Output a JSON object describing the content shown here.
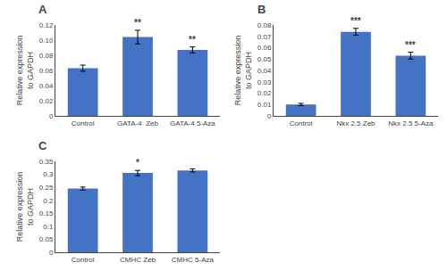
{
  "chart_data": [
    {
      "type": "bar",
      "title": "A",
      "categories": [
        "Control",
        "GATA-4  Zeb",
        "GATA-4 5-Aza"
      ],
      "values": [
        0.063,
        0.104,
        0.087
      ],
      "errors": [
        0.004,
        0.009,
        0.004
      ],
      "color": "#4472C4",
      "ylim": [
        0,
        0.12
      ],
      "yticks": [
        0,
        0.02,
        0.04,
        0.06,
        0.08,
        {
          "value": 0.1,
          "label": "0.10"
        },
        0.12
      ],
      "ylabel": "Relative expression\nto GAPDH",
      "annotations": [
        {
          "x": "GATA-4  Zeb",
          "text": "**"
        },
        {
          "x": "GATA-4 5-Aza",
          "text": "**"
        }
      ],
      "grid": false
    },
    {
      "type": "bar",
      "title": "B",
      "categories": [
        "Control",
        "Nkx 2.5 Zeb",
        "Nkx 2.5 5-Aza"
      ],
      "values": [
        0.01,
        0.074,
        0.053
      ],
      "errors": [
        0.001,
        0.003,
        0.003
      ],
      "color": "#4472C4",
      "ylim": [
        0,
        0.08
      ],
      "yticks": [
        0,
        0.01,
        0.02,
        0.03,
        0.04,
        0.05,
        0.06,
        0.07,
        0.08
      ],
      "ylabel": "Relative expression\nto GAPDH",
      "annotations": [
        {
          "x": "Nkx 2.5 Zeb",
          "text": "***"
        },
        {
          "x": "Nkx 2.5 5-Aza",
          "text": "***"
        }
      ],
      "grid": false
    },
    {
      "type": "bar",
      "title": "C",
      "categories": [
        "Control",
        "CMHC Zeb",
        "CMHC 5-Aza"
      ],
      "values": [
        0.245,
        0.305,
        0.315
      ],
      "errors": [
        0.006,
        0.01,
        0.006
      ],
      "color": "#4472C4",
      "ylim": [
        0,
        0.35
      ],
      "yticks": [
        0,
        0.05,
        0.1,
        0.15,
        0.2,
        0.25,
        0.3,
        0.35
      ],
      "ylabel": "Relative expression\nto GAPDH",
      "annotations": [
        {
          "x": "CMHC Zeb",
          "text": "*"
        }
      ],
      "grid": false
    }
  ]
}
